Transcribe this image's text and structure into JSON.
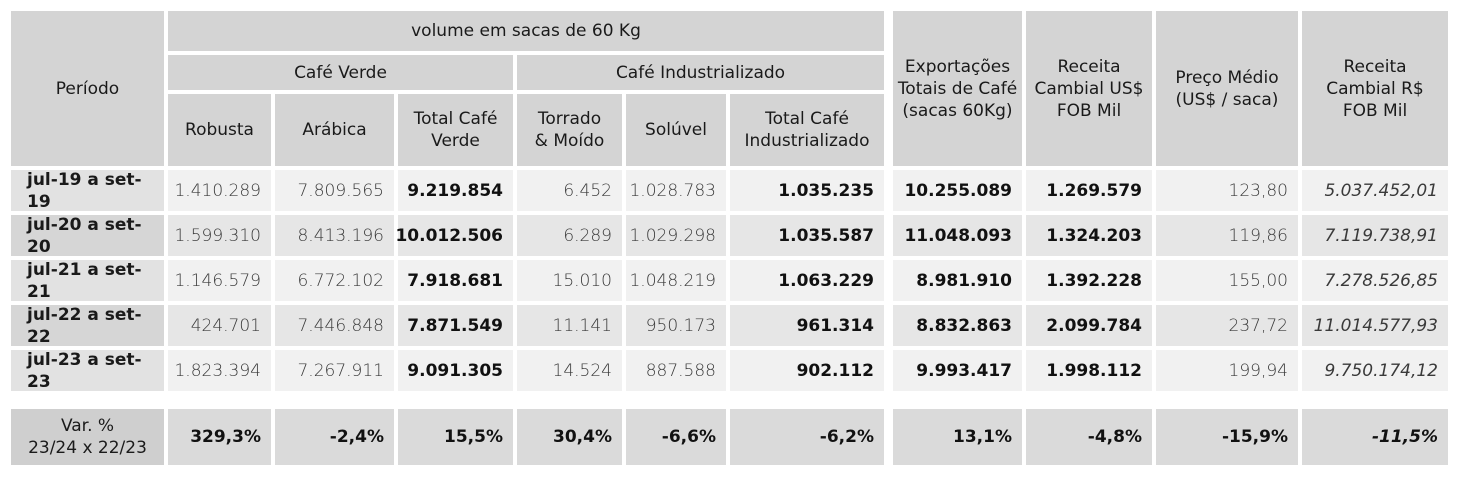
{
  "headers": {
    "periodo": "Período",
    "volume": "volume em sacas de 60 Kg",
    "cafe_verde": "Café Verde",
    "cafe_industrializado": "Café Industrializado",
    "robusta": "Robusta",
    "arabica": "Arábica",
    "total_cafe_verde": "Total Café Verde",
    "torrado_moido": "Torrado & Moído",
    "soluvel": "Solúvel",
    "total_cafe_industrializado": "Total Café Industrializado",
    "exportacoes": "Exportações Totais de Café (sacas 60Kg)",
    "receita_usd": "Receita Cambial US$ FOB Mil",
    "preco_medio": "Preço Médio (US$ / saca)",
    "receita_brl": "Receita Cambial R$ FOB Mil"
  },
  "rows": [
    {
      "periodo": "jul-19 a set-19",
      "robusta": "1.410.289",
      "arabica": "7.809.565",
      "total_verde": "9.219.854",
      "torrado": "6.452",
      "soluvel": "1.028.783",
      "total_ind": "1.035.235",
      "exportacoes": "10.255.089",
      "receita_usd": "1.269.579",
      "preco": "123,80",
      "receita_brl": "5.037.452,01"
    },
    {
      "periodo": "jul-20 a set-20",
      "robusta": "1.599.310",
      "arabica": "8.413.196",
      "total_verde": "10.012.506",
      "torrado": "6.289",
      "soluvel": "1.029.298",
      "total_ind": "1.035.587",
      "exportacoes": "11.048.093",
      "receita_usd": "1.324.203",
      "preco": "119,86",
      "receita_brl": "7.119.738,91"
    },
    {
      "periodo": "jul-21 a set-21",
      "robusta": "1.146.579",
      "arabica": "6.772.102",
      "total_verde": "7.918.681",
      "torrado": "15.010",
      "soluvel": "1.048.219",
      "total_ind": "1.063.229",
      "exportacoes": "8.981.910",
      "receita_usd": "1.392.228",
      "preco": "155,00",
      "receita_brl": "7.278.526,85"
    },
    {
      "periodo": "jul-22 a set-22",
      "robusta": "424.701",
      "arabica": "7.446.848",
      "total_verde": "7.871.549",
      "torrado": "11.141",
      "soluvel": "950.173",
      "total_ind": "961.314",
      "exportacoes": "8.832.863",
      "receita_usd": "2.099.784",
      "preco": "237,72",
      "receita_brl": "11.014.577,93"
    },
    {
      "periodo": "jul-23 a set-23",
      "robusta": "1.823.394",
      "arabica": "7.267.911",
      "total_verde": "9.091.305",
      "torrado": "14.524",
      "soluvel": "887.588",
      "total_ind": "902.112",
      "exportacoes": "9.993.417",
      "receita_usd": "1.998.112",
      "preco": "199,94",
      "receita_brl": "9.750.174,12"
    }
  ],
  "variation": {
    "label_line1": "Var. %",
    "label_line2": "23/24 x 22/23",
    "robusta": "329,3%",
    "arabica": "-2,4%",
    "total_verde": "15,5%",
    "torrado": "30,4%",
    "soluvel": "-6,6%",
    "total_ind": "-6,2%",
    "exportacoes": "13,1%",
    "receita_usd": "-4,8%",
    "preco": "-15,9%",
    "receita_brl": "-11,5%"
  }
}
